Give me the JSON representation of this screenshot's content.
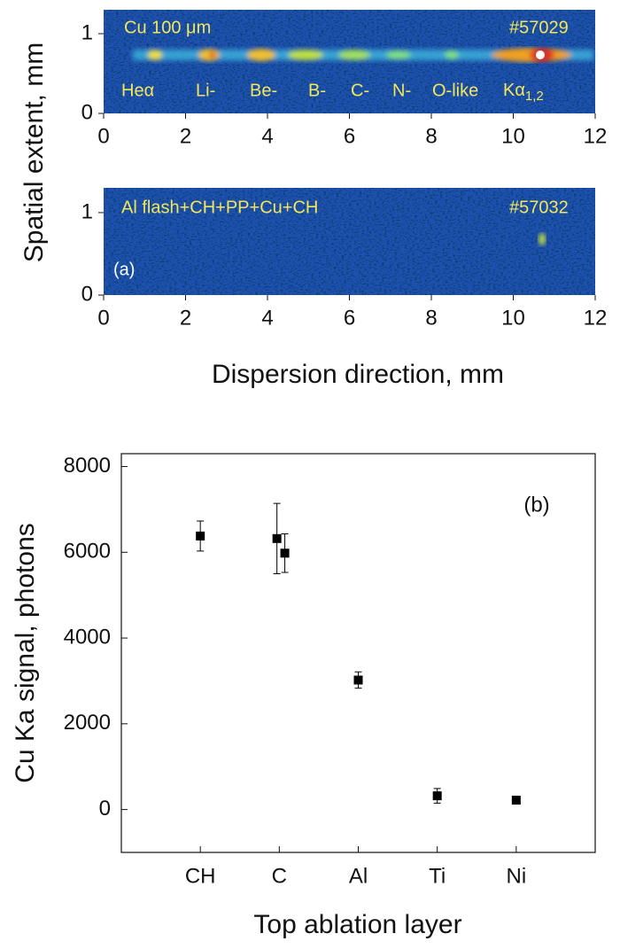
{
  "chart_data": [
    {
      "type": "image",
      "annotations": [
        "Cu 100 μm",
        "#57029"
      ],
      "line_labels": [
        "Heα",
        "Li-",
        "Be-",
        "B-",
        "C-",
        "N-",
        "O-like"
      ],
      "k_alpha": {
        "base": "Kα",
        "sub": "1,2"
      },
      "ylabel": "Spatial extent, mm",
      "xlim": [
        0,
        12
      ],
      "xticks": [
        0,
        2,
        4,
        6,
        8,
        10,
        12
      ],
      "ylim": [
        0,
        1.3
      ],
      "yticks": [
        0,
        1
      ]
    },
    {
      "type": "image",
      "annotations": [
        "Al flash+CH+PP+Cu+CH",
        "#57032",
        "(a)"
      ],
      "xlabel": "Dispersion direction, mm",
      "xlim": [
        0,
        12
      ],
      "xticks": [
        0,
        2,
        4,
        6,
        8,
        10,
        12
      ],
      "ylim": [
        0,
        1.3
      ],
      "yticks": [
        0,
        1
      ]
    },
    {
      "type": "scatter",
      "annotation": "(b)",
      "xlabel": "Top ablation layer",
      "ylabel": "Cu Ka signal, photons",
      "x": [
        1,
        1.97,
        2.07,
        3,
        4,
        5
      ],
      "values": [
        6380,
        6320,
        5980,
        3020,
        320,
        220
      ],
      "errors": [
        350,
        820,
        450,
        190,
        170,
        50
      ],
      "color": "#000000",
      "xlim": [
        0,
        6
      ],
      "xticks": [
        {
          "value": 1,
          "label": "CH"
        },
        {
          "value": 2,
          "label": "C"
        },
        {
          "value": 3,
          "label": "Al"
        },
        {
          "value": 4,
          "label": "Ti"
        },
        {
          "value": 5,
          "label": "Ni"
        }
      ],
      "ylim": [
        -1000,
        8300
      ],
      "yticks": [
        0,
        2000,
        4000,
        6000,
        8000
      ]
    }
  ]
}
